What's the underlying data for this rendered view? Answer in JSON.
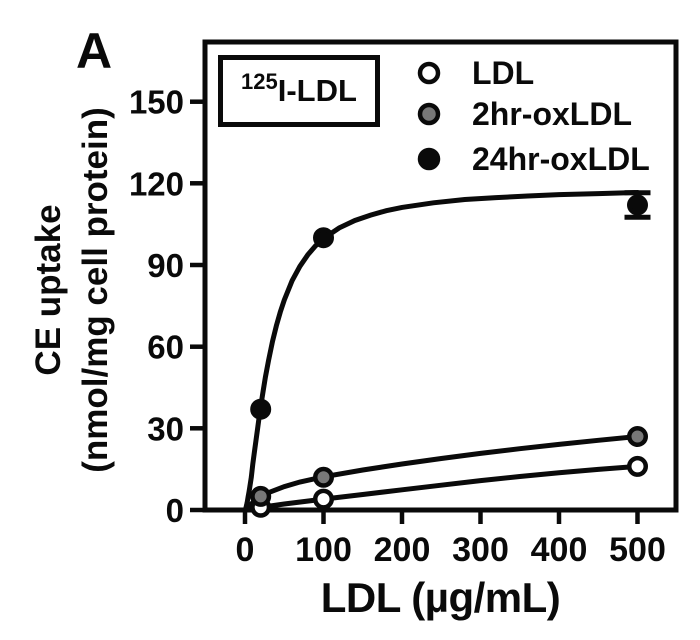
{
  "panel_label": "A",
  "colors": {
    "ink": "#0a0a0a",
    "gray_marker": "#787878",
    "open_marker": "#ffffff",
    "background": "#ffffff"
  },
  "chart_data": {
    "type": "scatter",
    "title": "",
    "annotation_box": {
      "isotope": "125",
      "label": "I-LDL"
    },
    "xlabel": "LDL (µg/mL)",
    "ylabel": "CE uptake (nmol/mg cell protein)",
    "ylabel_lines": [
      "CE uptake",
      "(nmol/mg cell protein)"
    ],
    "x_ticks": [
      "0",
      "100",
      "200",
      "300",
      "400",
      "500"
    ],
    "y_ticks": [
      "0",
      "30",
      "60",
      "90",
      "120",
      "150"
    ],
    "xlim": [
      0,
      500
    ],
    "ylim": [
      0,
      150
    ],
    "grid": false,
    "legend_position": "inside-top-right",
    "series": [
      {
        "name": "LDL",
        "marker": "open-circle",
        "marker_fill": "#ffffff",
        "x": [
          20,
          100,
          500
        ],
        "y": [
          1,
          4,
          16
        ],
        "y_err": [
          0,
          0,
          0
        ],
        "fit_curve": [
          [
            0,
            0
          ],
          [
            20,
            1
          ],
          [
            50,
            2.2
          ],
          [
            100,
            4
          ],
          [
            150,
            5.7
          ],
          [
            200,
            7.4
          ],
          [
            250,
            9.1
          ],
          [
            300,
            10.8
          ],
          [
            350,
            12.3
          ],
          [
            400,
            13.7
          ],
          [
            450,
            14.9
          ],
          [
            500,
            16
          ]
        ]
      },
      {
        "name": "2hr-oxLDL",
        "marker": "gray-circle",
        "marker_fill": "#787878",
        "x": [
          20,
          100,
          500
        ],
        "y": [
          5,
          12,
          27
        ],
        "y_err": [
          0,
          0,
          0
        ],
        "fit_curve": [
          [
            0,
            0
          ],
          [
            5,
            1.4
          ],
          [
            10,
            2.7
          ],
          [
            20,
            4.9
          ],
          [
            30,
            6.4
          ],
          [
            50,
            8.6
          ],
          [
            70,
            10.3
          ],
          [
            100,
            12.2
          ],
          [
            150,
            14.7
          ],
          [
            200,
            16.9
          ],
          [
            250,
            18.9
          ],
          [
            300,
            20.8
          ],
          [
            350,
            22.5
          ],
          [
            400,
            24.1
          ],
          [
            450,
            25.6
          ],
          [
            500,
            27
          ]
        ]
      },
      {
        "name": "24hr-oxLDL",
        "marker": "black-circle",
        "marker_fill": "#0a0a0a",
        "x": [
          20,
          100,
          500
        ],
        "y": [
          37,
          100,
          112
        ],
        "y_err": [
          0,
          0,
          4.5
        ],
        "fit_curve": [
          [
            1,
            0.6
          ],
          [
            2,
            1.8
          ],
          [
            3,
            3.2
          ],
          [
            4,
            4.8
          ],
          [
            5,
            6.4
          ],
          [
            6,
            8.2
          ],
          [
            8,
            12
          ],
          [
            10,
            16.9
          ],
          [
            12,
            21.3
          ],
          [
            14,
            25.6
          ],
          [
            16,
            29.9
          ],
          [
            18,
            34
          ],
          [
            20,
            38
          ],
          [
            23,
            43.6
          ],
          [
            26,
            48.8
          ],
          [
            30,
            55
          ],
          [
            35,
            61.9
          ],
          [
            40,
            67.7
          ],
          [
            45,
            72.7
          ],
          [
            50,
            77.1
          ],
          [
            60,
            84.2
          ],
          [
            70,
            89.5
          ],
          [
            80,
            93.7
          ],
          [
            90,
            97
          ],
          [
            100,
            99.7
          ],
          [
            120,
            103.6
          ],
          [
            140,
            106.3
          ],
          [
            160,
            108.3
          ],
          [
            180,
            109.9
          ],
          [
            200,
            111.1
          ],
          [
            240,
            112.8
          ],
          [
            280,
            114
          ],
          [
            320,
            114.7
          ],
          [
            360,
            115.3
          ],
          [
            400,
            115.8
          ],
          [
            450,
            116.2
          ],
          [
            500,
            116.6
          ]
        ]
      }
    ]
  }
}
